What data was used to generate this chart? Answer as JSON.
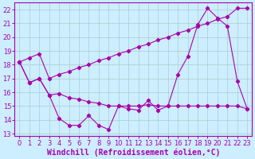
{
  "xlabel": "Windchill (Refroidissement éolien,°C)",
  "ylabel": "",
  "xlim": [
    -0.5,
    23.5
  ],
  "ylim": [
    12.8,
    22.5
  ],
  "yticks": [
    13,
    14,
    15,
    16,
    17,
    18,
    19,
    20,
    21,
    22
  ],
  "xticks": [
    0,
    1,
    2,
    3,
    4,
    5,
    6,
    7,
    8,
    9,
    10,
    11,
    12,
    13,
    14,
    15,
    16,
    17,
    18,
    19,
    20,
    21,
    22,
    23
  ],
  "background_color": "#cceeff",
  "grid_color": "#aacccc",
  "line_color": "#aa00aa",
  "line1_y": [
    18.2,
    16.7,
    17.0,
    15.8,
    14.1,
    13.6,
    13.6,
    14.3,
    13.6,
    13.3,
    15.0,
    14.8,
    14.7,
    15.4,
    14.7,
    15.0,
    17.3,
    18.6,
    20.9,
    22.1,
    21.4,
    20.8,
    16.8,
    14.8
  ],
  "line2_y": [
    18.2,
    16.7,
    17.0,
    15.8,
    15.9,
    15.6,
    15.5,
    15.3,
    15.2,
    15.0,
    15.0,
    15.0,
    15.0,
    15.1,
    15.0,
    15.0,
    15.0,
    15.0,
    15.0,
    15.0,
    15.0,
    15.0,
    15.0,
    14.8
  ],
  "line3_y": [
    18.2,
    18.5,
    18.8,
    17.0,
    17.3,
    17.5,
    17.8,
    18.0,
    18.3,
    18.5,
    18.8,
    19.0,
    19.3,
    19.5,
    19.8,
    20.0,
    20.3,
    20.5,
    20.8,
    21.0,
    21.3,
    21.5,
    22.1,
    22.1
  ],
  "xlabel_fontsize": 7,
  "tick_fontsize": 6
}
